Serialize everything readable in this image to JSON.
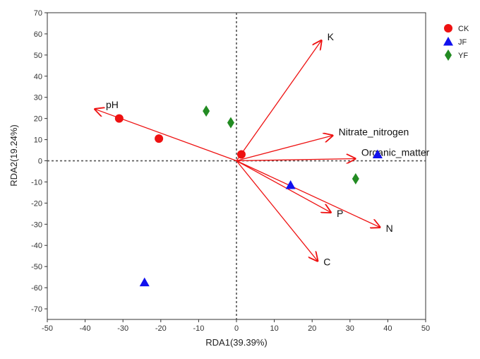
{
  "chart_data": {
    "type": "scatter",
    "title": "",
    "xlabel": "RDA1(39.39%)",
    "ylabel": "RDA2(19.24%)",
    "xlim": [
      -50,
      50
    ],
    "ylim": [
      -75,
      70
    ],
    "xticks": [
      -50,
      -40,
      -30,
      -20,
      -10,
      0,
      10,
      20,
      30,
      40,
      50
    ],
    "yticks": [
      70,
      60,
      50,
      40,
      30,
      20,
      10,
      0,
      -10,
      -20,
      -30,
      -40,
      -50,
      -60,
      -70
    ],
    "zero_lines": "dashed",
    "grid": false,
    "legend_position": "top-right",
    "series": [
      {
        "name": "CK",
        "marker": "circle",
        "color": "#ee1111",
        "points": [
          [
            -31,
            20
          ],
          [
            -20.5,
            10.5
          ],
          [
            1.3,
            3
          ]
        ]
      },
      {
        "name": "JF",
        "marker": "triangle",
        "color": "#1111ee",
        "points": [
          [
            -24.3,
            -57.5
          ],
          [
            14.3,
            -11.5
          ],
          [
            37.3,
            3
          ]
        ]
      },
      {
        "name": "YF",
        "marker": "diamond",
        "color": "#228b22",
        "points": [
          [
            -8,
            23.5
          ],
          [
            -1.5,
            18
          ],
          [
            31.5,
            -8.5
          ]
        ]
      }
    ],
    "vectors": [
      {
        "label": "K",
        "x": 22.5,
        "y": 57
      },
      {
        "label": "pH",
        "x": -37.5,
        "y": 24.5
      },
      {
        "label": "Nitrate_nitrogen",
        "x": 25.5,
        "y": 12
      },
      {
        "label": "Organic_matter",
        "x": 31.5,
        "y": 1
      },
      {
        "label": "P",
        "x": 25,
        "y": -24.5
      },
      {
        "label": "N",
        "x": 38,
        "y": -31.5
      },
      {
        "label": "C",
        "x": 21.5,
        "y": -47.5
      }
    ],
    "vector_color": "#ee1111"
  }
}
